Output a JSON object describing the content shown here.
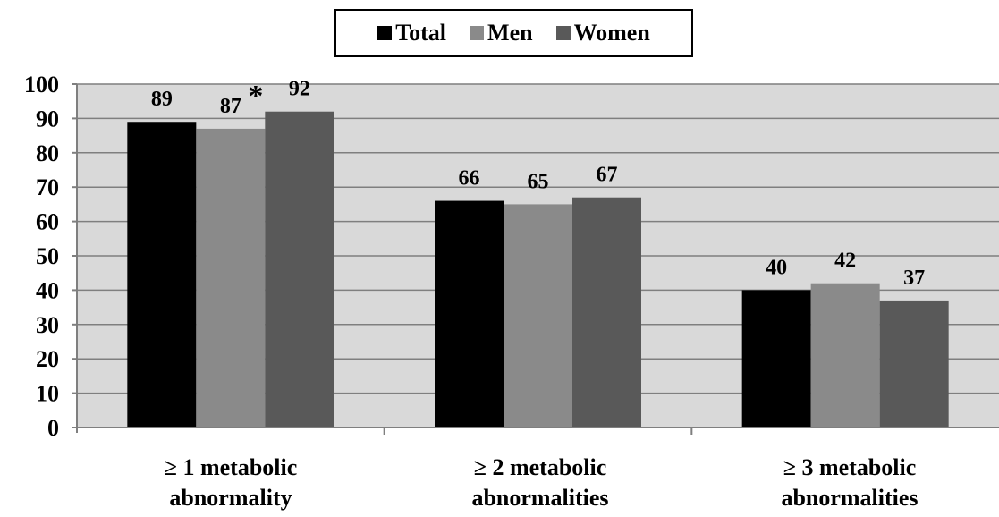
{
  "chart_data": {
    "type": "bar",
    "categories": [
      [
        "≥ 1 metabolic",
        "abnormality"
      ],
      [
        "≥ 2 metabolic",
        "abnormalities"
      ],
      [
        "≥ 3 metabolic",
        "abnormalities"
      ]
    ],
    "series": [
      {
        "name": "Total",
        "color": "#000000",
        "values": [
          89,
          66,
          40
        ],
        "labels": [
          "89",
          "66",
          "40"
        ]
      },
      {
        "name": "Men",
        "color": "#8a8a8a",
        "values": [
          87,
          65,
          42
        ],
        "labels": [
          "87",
          "65",
          "42"
        ]
      },
      {
        "name": "Women",
        "color": "#595959",
        "values": [
          92,
          67,
          37
        ],
        "labels": [
          "92",
          "67",
          "37"
        ]
      }
    ],
    "annotations": [
      {
        "text": "*",
        "category": 0,
        "series": 1
      }
    ],
    "ylim": [
      0,
      100
    ],
    "yticks": [
      "0",
      "10",
      "20",
      "30",
      "40",
      "50",
      "60",
      "70",
      "80",
      "90",
      "100"
    ],
    "grid": true,
    "plot_background": "#d9d9d9",
    "legend_position": "top-center",
    "title": "",
    "xlabel": "",
    "ylabel": ""
  }
}
